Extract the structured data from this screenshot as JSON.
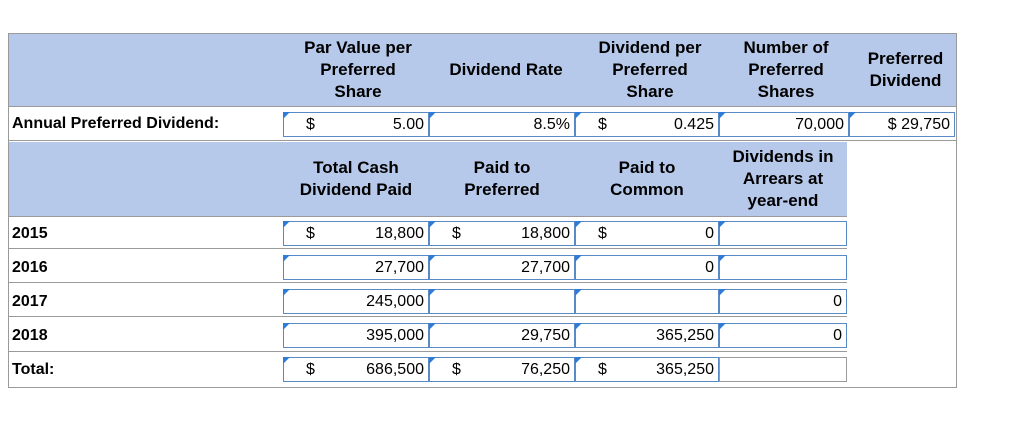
{
  "top": {
    "headers": {
      "par_value": "Par Value per\nPreferred\nShare",
      "dividend_rate": "Dividend Rate",
      "dividend_per_share": "Dividend per\nPreferred\nShare",
      "number_shares": "Number of\nPreferred\nShares",
      "preferred_dividend": "Preferred\nDividend"
    },
    "row_label": "Annual Preferred Dividend:",
    "par_dollar": "$",
    "par_value": "5.00",
    "rate": "8.5%",
    "dps_dollar": "$",
    "dps": "0.425",
    "shares": "70,000",
    "pref_dividend": "$ 29,750"
  },
  "bottom": {
    "headers": {
      "total_cash": "Total Cash\nDividend Paid",
      "paid_preferred": "Paid to\nPreferred",
      "paid_common": "Paid to\nCommon",
      "arrears": "Dividends in\nArrears at\nyear-end"
    },
    "rows": [
      {
        "label": "2015",
        "total_dollar": "$",
        "total": "18,800",
        "pref_dollar": "$",
        "pref": "18,800",
        "common_dollar": "$",
        "common": "0",
        "arrears": ""
      },
      {
        "label": "2016",
        "total_dollar": "",
        "total": "27,700",
        "pref_dollar": "",
        "pref": "27,700",
        "common_dollar": "",
        "common": "0",
        "arrears": ""
      },
      {
        "label": "2017",
        "total_dollar": "",
        "total": "245,000",
        "pref_dollar": "",
        "pref": "",
        "common_dollar": "",
        "common": "",
        "arrears": "0"
      },
      {
        "label": "2018",
        "total_dollar": "",
        "total": "395,000",
        "pref_dollar": "",
        "pref": "29,750",
        "common_dollar": "",
        "common": "365,250",
        "arrears": "0"
      }
    ],
    "total_row": {
      "label": "Total:",
      "total_dollar": "$",
      "total": "686,500",
      "pref_dollar": "$",
      "pref": "76,250",
      "common_dollar": "$",
      "common": "365,250"
    }
  }
}
